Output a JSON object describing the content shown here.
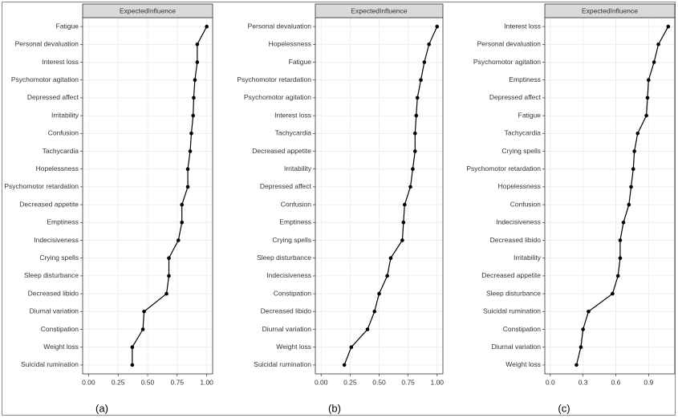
{
  "chart_data": [
    {
      "type": "dot-line",
      "title": "ExpectedInfluence",
      "caption": "(a)",
      "color": "#000000",
      "grid": true,
      "categories": [
        "Fatigue",
        "Personal devaluation",
        "Interest loss",
        "Psychomotor agitation",
        "Depressed affect",
        "Irritability",
        "Confusion",
        "Tachycardia",
        "Hopelessness",
        "Psychomotor retardation",
        "Decreased appetite",
        "Emptiness",
        "Indecisiveness",
        "Crying spells",
        "Sleep disturbance",
        "Decreased libido",
        "Diurnal variation",
        "Constipation",
        "Weight loss",
        "Suicidal rumination"
      ],
      "values": [
        1.0,
        0.92,
        0.92,
        0.9,
        0.89,
        0.885,
        0.87,
        0.86,
        0.84,
        0.84,
        0.79,
        0.79,
        0.76,
        0.68,
        0.68,
        0.66,
        0.47,
        0.46,
        0.37,
        0.37
      ],
      "xlim": [
        -0.05,
        1.05
      ],
      "xticks": [
        {
          "value": 0,
          "label": "0.00"
        },
        {
          "value": 0.25,
          "label": "0.25"
        },
        {
          "value": 0.5,
          "label": "0.50"
        },
        {
          "value": 0.75,
          "label": "0.75"
        },
        {
          "value": 1,
          "label": "1.00"
        }
      ]
    },
    {
      "type": "dot-line",
      "title": "ExpectedInfluence",
      "caption": "(b)",
      "color": "#000000",
      "grid": true,
      "categories": [
        "Personal devaluation",
        "Hopelessness",
        "Fatigue",
        "Psychomotor retardation",
        "Psychomotor agitation",
        "Interest loss",
        "Tachycardia",
        "Decreased appetite",
        "Irritability",
        "Depressed affect",
        "Confusion",
        "Emptiness",
        "Crying spells",
        "Sleep disturbance",
        "Indecisiveness",
        "Constipation",
        "Decreased libido",
        "Diurnal variation",
        "Weight loss",
        "Suicidal rumination"
      ],
      "values": [
        1.0,
        0.93,
        0.89,
        0.86,
        0.83,
        0.82,
        0.81,
        0.81,
        0.79,
        0.77,
        0.72,
        0.71,
        0.7,
        0.6,
        0.57,
        0.5,
        0.46,
        0.4,
        0.26,
        0.2
      ],
      "xlim": [
        -0.05,
        1.05
      ],
      "xticks": [
        {
          "value": 0,
          "label": "0.00"
        },
        {
          "value": 0.25,
          "label": "0.25"
        },
        {
          "value": 0.5,
          "label": "0.50"
        },
        {
          "value": 0.75,
          "label": "0.75"
        },
        {
          "value": 1,
          "label": "1.00"
        }
      ]
    },
    {
      "type": "dot-line",
      "title": "ExpectedInfluence",
      "caption": "(c)",
      "color": "#000000",
      "grid": true,
      "categories": [
        "Interest loss",
        "Personal devaluation",
        "Psychomotor agitation",
        "Emptiness",
        "Depressed affect",
        "Fatigue",
        "Tachycardia",
        "Crying spells",
        "Psychomotor retardation",
        "Hopelessness",
        "Confusion",
        "Indecisiveness",
        "Decreased libido",
        "Irritability",
        "Decreased appetite",
        "Sleep disturbance",
        "Suicidal rumination",
        "Constipation",
        "Diurnal variation",
        "Weight loss"
      ],
      "values": [
        1.08,
        0.99,
        0.95,
        0.9,
        0.89,
        0.88,
        0.8,
        0.77,
        0.76,
        0.74,
        0.72,
        0.67,
        0.64,
        0.64,
        0.62,
        0.57,
        0.35,
        0.3,
        0.28,
        0.24
      ],
      "xlim": [
        -0.05,
        1.14
      ],
      "xticks": [
        {
          "value": 0,
          "label": "0.0"
        },
        {
          "value": 0.3,
          "label": "0.3"
        },
        {
          "value": 0.6,
          "label": "0.6"
        },
        {
          "value": 0.9,
          "label": "0.9"
        }
      ]
    }
  ]
}
